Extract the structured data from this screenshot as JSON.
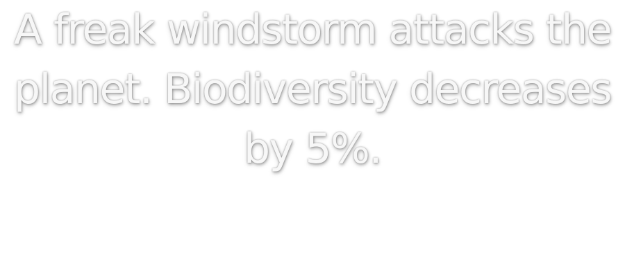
{
  "event": {
    "message": "A freak windstorm attacks the planet. Biodiversity decreases by 5%."
  }
}
